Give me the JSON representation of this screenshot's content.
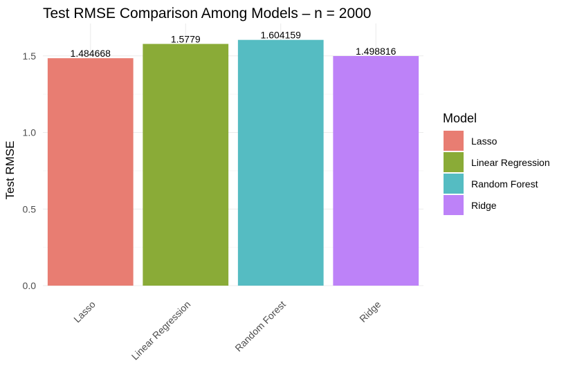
{
  "chart_data": {
    "type": "bar",
    "title": "Test RMSE Comparison Among Models – n = 2000",
    "xlabel": "",
    "ylabel": "Test RMSE",
    "categories": [
      "Lasso",
      "Linear Regression",
      "Random Forest",
      "Ridge"
    ],
    "values": [
      1.484668,
      1.5779,
      1.604159,
      1.498816
    ],
    "data_labels": [
      "1.484668",
      "1.5779",
      "1.604159",
      "1.498816"
    ],
    "colors": [
      "#E87D72",
      "#8AAB37",
      "#55BCC2",
      "#BD82F8"
    ],
    "ylim": [
      0,
      1.6
    ],
    "yticks": [
      0.0,
      0.5,
      1.0,
      1.5
    ],
    "ytick_labels": [
      "0.0",
      "0.5",
      "1.0",
      "1.5"
    ],
    "grid": true,
    "legend": {
      "title": "Model",
      "position": "right",
      "entries": [
        "Lasso",
        "Linear Regression",
        "Random Forest",
        "Ridge"
      ]
    }
  }
}
